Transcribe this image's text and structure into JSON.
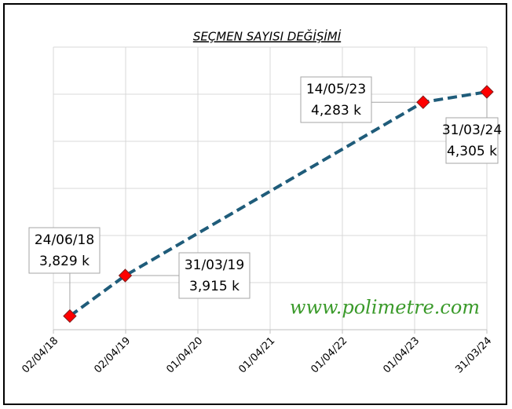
{
  "chart_data": {
    "type": "line",
    "title": "SEÇMEN SAYISI DEĞİŞİMİ",
    "annotations": [
      "www.polimetre.com"
    ],
    "x": [
      "24/06/18",
      "31/03/19",
      "14/05/23",
      "31/03/24"
    ],
    "series": [
      {
        "name": "Seçmen Sayısı",
        "color": "#1f5c7a",
        "marker_color": "#ff0000",
        "values": [
          3829,
          3915,
          4283,
          4305
        ],
        "value_labels": [
          "3,829 k",
          "3,915 k",
          "4,283 k",
          "4,305 k"
        ]
      }
    ],
    "xlim": [
      "02/04/18",
      "31/03/24"
    ],
    "xticks": [
      "02/04/18",
      "02/04/19",
      "01/04/20",
      "01/04/21",
      "01/04/22",
      "01/04/23",
      "31/03/24"
    ],
    "ylim": [
      3800,
      4400
    ],
    "yticks": [
      3800,
      3900,
      4000,
      4100,
      4200,
      4300,
      4400
    ],
    "grid": true
  }
}
